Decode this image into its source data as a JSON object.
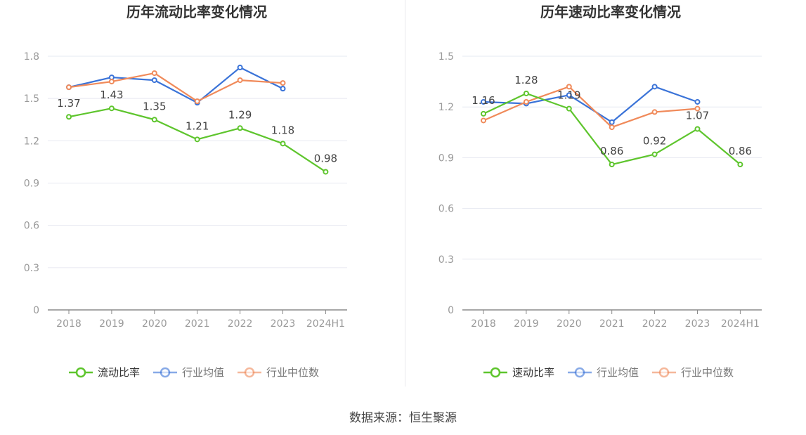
{
  "source": "数据来源：恒生聚源",
  "chart_data": [
    {
      "type": "line",
      "title": "历年流动比率变化情况",
      "categories": [
        "2018",
        "2019",
        "2020",
        "2021",
        "2022",
        "2023",
        "2024H1"
      ],
      "ylim": [
        0,
        1.8
      ],
      "yticks": [
        0,
        0.3,
        0.6,
        0.9,
        1.2,
        1.5,
        1.8
      ],
      "ytick_labels": [
        "0",
        "0.3",
        "0.6",
        "0.9",
        "1.2",
        "1.5",
        "1.8"
      ],
      "grid": true,
      "legend_position": "bottom-center",
      "series": [
        {
          "name": "流动比率",
          "color": "#5ec52d",
          "values": [
            1.37,
            1.43,
            1.35,
            1.21,
            1.29,
            1.18,
            0.98
          ],
          "labels": [
            "1.37",
            "1.43",
            "1.35",
            "1.21",
            "1.29",
            "1.18",
            "0.98"
          ]
        },
        {
          "name": "行业均值",
          "color": "#3a73d8",
          "values": [
            1.58,
            1.65,
            1.63,
            1.47,
            1.72,
            1.57,
            null
          ]
        },
        {
          "name": "行业中位数",
          "color": "#f08a5a",
          "values": [
            1.58,
            1.62,
            1.68,
            1.48,
            1.63,
            1.61,
            null
          ]
        }
      ]
    },
    {
      "type": "line",
      "title": "历年速动比率变化情况",
      "categories": [
        "2018",
        "2019",
        "2020",
        "2021",
        "2022",
        "2023",
        "2024H1"
      ],
      "ylim": [
        0,
        1.5
      ],
      "yticks": [
        0,
        0.3,
        0.6,
        0.9,
        1.2,
        1.5
      ],
      "ytick_labels": [
        "0",
        "0.3",
        "0.6",
        "0.9",
        "1.2",
        "1.5"
      ],
      "grid": true,
      "legend_position": "bottom-center",
      "series": [
        {
          "name": "速动比率",
          "color": "#5ec52d",
          "values": [
            1.16,
            1.28,
            1.19,
            0.86,
            0.92,
            1.07,
            0.86
          ],
          "labels": [
            "1.16",
            "1.28",
            "1.19",
            "0.86",
            "0.92",
            "1.07",
            "0.86"
          ]
        },
        {
          "name": "行业均值",
          "color": "#3a73d8",
          "values": [
            1.23,
            1.22,
            1.27,
            1.11,
            1.32,
            1.23,
            null
          ]
        },
        {
          "name": "行业中位数",
          "color": "#f08a5a",
          "values": [
            1.12,
            1.23,
            1.32,
            1.08,
            1.17,
            1.19,
            null
          ]
        }
      ]
    }
  ]
}
